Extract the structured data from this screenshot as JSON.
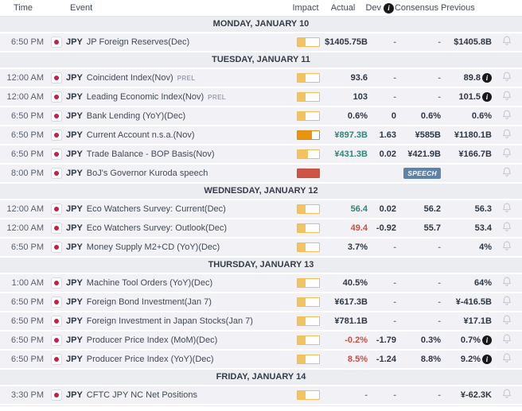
{
  "header": {
    "time": "Time",
    "event": "Event",
    "impact": "Impact",
    "actual": "Actual",
    "dev": "Dev",
    "consensus": "Consensus",
    "previous": "Previous"
  },
  "colors": {
    "accent_yellow": "#f2c35e",
    "accent_orange": "#e8940e",
    "accent_red": "#cd5546",
    "positive": "#2f8577",
    "negative": "#c6503f",
    "badge_blue": "#5f83a7",
    "flag_red": "#c2224a"
  },
  "groups": [
    {
      "day": "MONDAY, JANUARY 10",
      "rows": [
        {
          "time": "6:50 PM",
          "currency": "JPY",
          "event": "JP Foreign Reserves(Dec)",
          "prel": "",
          "impact": {
            "color": "yellow",
            "pct": 36
          },
          "actual": "$1405.75B",
          "tone": "",
          "dev": "-",
          "consensus": "-",
          "previous": "$1405.8B",
          "prev_info": false,
          "badge": ""
        }
      ]
    },
    {
      "day": "TUESDAY, JANUARY 11",
      "rows": [
        {
          "time": "12:00 AM",
          "currency": "JPY",
          "event": "Coincident Index(Nov)",
          "prel": "PREL",
          "impact": {
            "color": "yellow",
            "pct": 36
          },
          "actual": "93.6",
          "tone": "",
          "dev": "-",
          "consensus": "-",
          "previous": "89.8",
          "prev_info": true,
          "badge": ""
        },
        {
          "time": "12:00 AM",
          "currency": "JPY",
          "event": "Leading Economic Index(Nov)",
          "prel": "PREL",
          "impact": {
            "color": "yellow",
            "pct": 36
          },
          "actual": "103",
          "tone": "",
          "dev": "-",
          "consensus": "-",
          "previous": "101.5",
          "prev_info": true,
          "badge": ""
        },
        {
          "time": "6:50 PM",
          "currency": "JPY",
          "event": "Bank Lending (YoY)(Dec)",
          "prel": "",
          "impact": {
            "color": "yellow",
            "pct": 36
          },
          "actual": "0.6%",
          "tone": "",
          "dev": "0",
          "consensus": "0.6%",
          "previous": "0.6%",
          "prev_info": false,
          "badge": ""
        },
        {
          "time": "6:50 PM",
          "currency": "JPY",
          "event": "Current Account n.s.a.(Nov)",
          "prel": "",
          "impact": {
            "color": "orange",
            "pct": 66
          },
          "actual": "¥897.3B",
          "tone": "pos",
          "dev": "1.63",
          "consensus": "¥585B",
          "previous": "¥1180.1B",
          "prev_info": false,
          "badge": ""
        },
        {
          "time": "6:50 PM",
          "currency": "JPY",
          "event": "Trade Balance - BOP Basis(Nov)",
          "prel": "",
          "impact": {
            "color": "yellow",
            "pct": 48
          },
          "actual": "¥431.3B",
          "tone": "pos",
          "dev": "0.02",
          "consensus": "¥421.9B",
          "previous": "¥166.7B",
          "prev_info": false,
          "badge": ""
        },
        {
          "time": "8:00 PM",
          "currency": "JPY",
          "event": "BoJ's Governor Kuroda speech",
          "prel": "",
          "impact": {
            "color": "red",
            "pct": 100
          },
          "actual": "",
          "tone": "",
          "dev": "",
          "consensus": "",
          "previous": "",
          "prev_info": false,
          "badge": "SPEECH"
        }
      ]
    },
    {
      "day": "WEDNESDAY, JANUARY 12",
      "rows": [
        {
          "time": "12:00 AM",
          "currency": "JPY",
          "event": "Eco Watchers Survey: Current(Dec)",
          "prel": "",
          "impact": {
            "color": "yellow",
            "pct": 36
          },
          "actual": "56.4",
          "tone": "pos",
          "dev": "0.02",
          "consensus": "56.2",
          "previous": "56.3",
          "prev_info": false,
          "badge": ""
        },
        {
          "time": "12:00 AM",
          "currency": "JPY",
          "event": "Eco Watchers Survey: Outlook(Dec)",
          "prel": "",
          "impact": {
            "color": "yellow",
            "pct": 36
          },
          "actual": "49.4",
          "tone": "neg",
          "dev": "-0.92",
          "consensus": "55.7",
          "previous": "53.4",
          "prev_info": false,
          "badge": ""
        },
        {
          "time": "6:50 PM",
          "currency": "JPY",
          "event": "Money Supply M2+CD (YoY)(Dec)",
          "prel": "",
          "impact": {
            "color": "yellow",
            "pct": 36
          },
          "actual": "3.7%",
          "tone": "",
          "dev": "-",
          "consensus": "-",
          "previous": "4%",
          "prev_info": false,
          "badge": ""
        }
      ]
    },
    {
      "day": "THURSDAY, JANUARY 13",
      "rows": [
        {
          "time": "1:00 AM",
          "currency": "JPY",
          "event": "Machine Tool Orders (YoY)(Dec)",
          "prel": "",
          "impact": {
            "color": "yellow",
            "pct": 36
          },
          "actual": "40.5%",
          "tone": "",
          "dev": "-",
          "consensus": "-",
          "previous": "64%",
          "prev_info": false,
          "badge": ""
        },
        {
          "time": "6:50 PM",
          "currency": "JPY",
          "event": "Foreign Bond Investment(Jan 7)",
          "prel": "",
          "impact": {
            "color": "yellow",
            "pct": 36
          },
          "actual": "¥617.3B",
          "tone": "",
          "dev": "-",
          "consensus": "-",
          "previous": "¥-416.5B",
          "prev_info": false,
          "badge": ""
        },
        {
          "time": "6:50 PM",
          "currency": "JPY",
          "event": "Foreign Investment in Japan Stocks(Jan 7)",
          "prel": "",
          "impact": {
            "color": "yellow",
            "pct": 36
          },
          "actual": "¥781.1B",
          "tone": "",
          "dev": "-",
          "consensus": "-",
          "previous": "¥17.1B",
          "prev_info": false,
          "badge": ""
        },
        {
          "time": "6:50 PM",
          "currency": "JPY",
          "event": "Producer Price Index (MoM)(Dec)",
          "prel": "",
          "impact": {
            "color": "yellow",
            "pct": 36
          },
          "actual": "-0.2%",
          "tone": "neg",
          "dev": "-1.79",
          "consensus": "0.3%",
          "previous": "0.7%",
          "prev_info": true,
          "badge": ""
        },
        {
          "time": "6:50 PM",
          "currency": "JPY",
          "event": "Producer Price Index (YoY)(Dec)",
          "prel": "",
          "impact": {
            "color": "yellow",
            "pct": 36
          },
          "actual": "8.5%",
          "tone": "neg",
          "dev": "-1.24",
          "consensus": "8.8%",
          "previous": "9.2%",
          "prev_info": true,
          "badge": ""
        }
      ]
    },
    {
      "day": "FRIDAY, JANUARY 14",
      "rows": [
        {
          "time": "3:30 PM",
          "currency": "JPY",
          "event": "CFTC JPY NC Net Positions",
          "prel": "",
          "impact": {
            "color": "yellow",
            "pct": 36
          },
          "actual": "-",
          "tone": "",
          "dev": "-",
          "consensus": "-",
          "previous": "¥-62.3K",
          "prev_info": false,
          "badge": ""
        }
      ]
    }
  ]
}
